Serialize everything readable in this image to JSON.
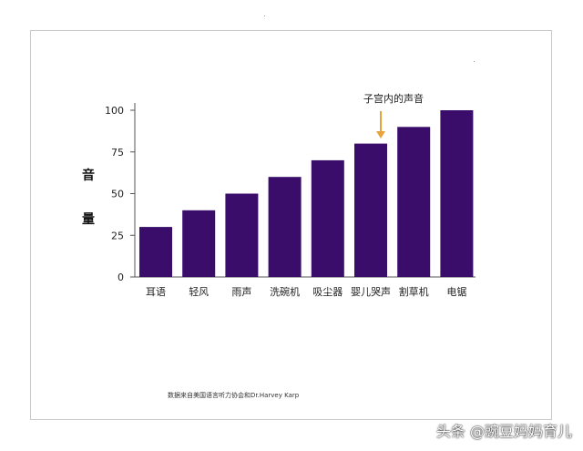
{
  "chart_data": {
    "type": "bar",
    "categories": [
      "耳语",
      "轻风",
      "雨声",
      "洗碗机",
      "吸尘器",
      "婴儿哭声",
      "割草机",
      "电锯"
    ],
    "values": [
      30,
      40,
      50,
      60,
      70,
      80,
      90,
      100
    ],
    "ylabel_chars": [
      "音",
      "量"
    ],
    "yticks": [
      0,
      25,
      50,
      75,
      100
    ],
    "ylim": [
      0,
      100
    ],
    "grid": false,
    "bar_color": "#3b0d6b",
    "annotation": {
      "text": "子宫内的声音",
      "category_index": 5,
      "arrow_color": "#e8a33a"
    }
  },
  "source": "数据来自美国语言听力协会和Dr.Harvey Karp",
  "watermark": "头条 @豌豆妈妈育儿"
}
